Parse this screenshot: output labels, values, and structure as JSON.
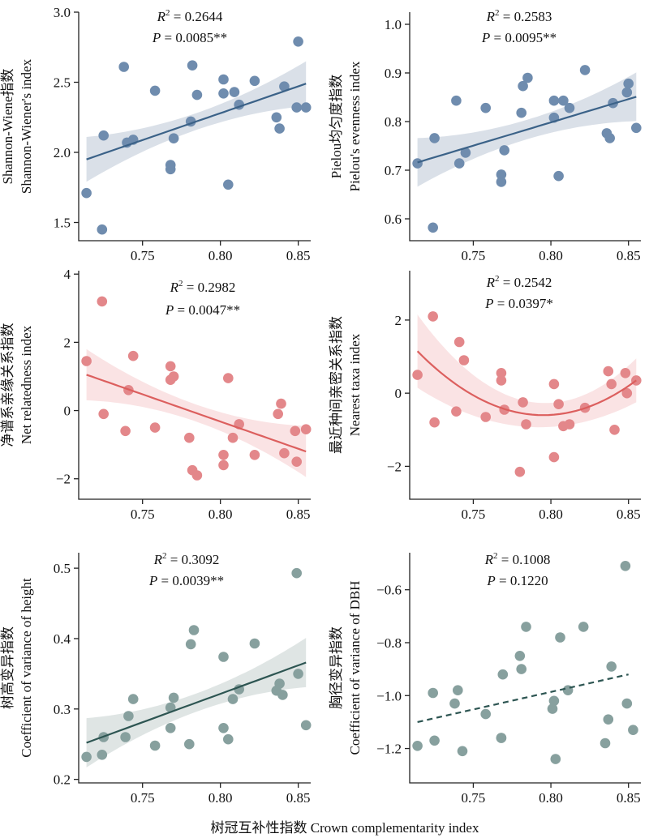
{
  "figure": {
    "xlabel": "树冠互补性指数 Crown complementarity index"
  },
  "chart_data": [
    {
      "type": "scatter",
      "ylabel": [
        "Shannon-Wiene指数",
        "Shannon-Wiener's index"
      ],
      "stats": {
        "r2_value": "0.2644",
        "p": "P = 0.0085**"
      },
      "xlim": [
        0.709,
        0.858
      ],
      "ylim": [
        1.37,
        3.0
      ],
      "xticks": [
        0.75,
        0.8,
        0.85
      ],
      "yticks": [
        1.5,
        2.0,
        2.5,
        3.0
      ],
      "ytick_labels": [
        "1.5",
        "2.0",
        "2.5",
        "3.0"
      ],
      "points": [
        [
          0.714,
          1.71
        ],
        [
          0.724,
          1.45
        ],
        [
          0.725,
          2.12
        ],
        [
          0.738,
          2.61
        ],
        [
          0.74,
          2.07
        ],
        [
          0.744,
          2.09
        ],
        [
          0.758,
          2.44
        ],
        [
          0.768,
          1.91
        ],
        [
          0.768,
          1.88
        ],
        [
          0.77,
          2.1
        ],
        [
          0.781,
          2.22
        ],
        [
          0.782,
          2.62
        ],
        [
          0.785,
          2.41
        ],
        [
          0.802,
          2.52
        ],
        [
          0.802,
          2.42
        ],
        [
          0.805,
          1.77
        ],
        [
          0.809,
          2.43
        ],
        [
          0.812,
          2.34
        ],
        [
          0.822,
          2.51
        ],
        [
          0.836,
          2.25
        ],
        [
          0.838,
          2.17
        ],
        [
          0.841,
          2.47
        ],
        [
          0.849,
          2.32
        ],
        [
          0.85,
          2.79
        ],
        [
          0.855,
          2.32
        ]
      ],
      "fit": {
        "x0": 0.714,
        "x1": 0.855,
        "kind": "linear",
        "y0": 1.95,
        "y1": 2.49,
        "ci_half0": 0.16,
        "ci_mid": 0.06,
        "ci_half1": 0.16
      },
      "color": "#6f8cae",
      "line_color": "#3b6288",
      "band_color": "#cdd6e0",
      "line_style": "solid"
    },
    {
      "type": "scatter",
      "ylabel": [
        "Pielou均匀度指数",
        "Pielou's evenness index"
      ],
      "stats": {
        "r2_value": "0.2583",
        "p": "P = 0.0095**"
      },
      "xlim": [
        0.709,
        0.858
      ],
      "ylim": [
        0.555,
        1.025
      ],
      "xticks": [
        0.75,
        0.8,
        0.85
      ],
      "yticks": [
        0.6,
        0.7,
        0.8,
        0.9,
        1.0
      ],
      "ytick_labels": [
        "0.6",
        "0.7",
        "0.8",
        "0.9",
        "1.0"
      ],
      "points": [
        [
          0.714,
          0.714
        ],
        [
          0.724,
          0.582
        ],
        [
          0.725,
          0.766
        ],
        [
          0.739,
          0.843
        ],
        [
          0.741,
          0.714
        ],
        [
          0.745,
          0.736
        ],
        [
          0.758,
          0.828
        ],
        [
          0.768,
          0.691
        ],
        [
          0.768,
          0.676
        ],
        [
          0.77,
          0.741
        ],
        [
          0.781,
          0.818
        ],
        [
          0.782,
          0.873
        ],
        [
          0.785,
          0.89
        ],
        [
          0.802,
          0.808
        ],
        [
          0.802,
          0.843
        ],
        [
          0.805,
          0.688
        ],
        [
          0.808,
          0.843
        ],
        [
          0.812,
          0.828
        ],
        [
          0.822,
          0.906
        ],
        [
          0.836,
          0.776
        ],
        [
          0.838,
          0.766
        ],
        [
          0.84,
          0.838
        ],
        [
          0.849,
          0.86
        ],
        [
          0.85,
          0.878
        ],
        [
          0.855,
          0.787
        ]
      ],
      "fit": {
        "x0": 0.714,
        "x1": 0.855,
        "kind": "linear",
        "y0": 0.716,
        "y1": 0.851,
        "ci_half0": 0.05,
        "ci_mid": 0.02,
        "ci_half1": 0.05
      },
      "color": "#6f8cae",
      "line_color": "#3b6288",
      "band_color": "#cdd6e0",
      "line_style": "solid"
    },
    {
      "type": "scatter",
      "ylabel": [
        "净谱系亲缘关系指数",
        "Net relatedness index"
      ],
      "stats": {
        "r2_value": "0.2982",
        "p": "P = 0.0047**"
      },
      "xlim": [
        0.709,
        0.858
      ],
      "ylim": [
        -2.6,
        4.1
      ],
      "xticks": [
        0.75,
        0.8,
        0.85
      ],
      "yticks": [
        -2,
        0,
        2,
        4
      ],
      "ytick_labels": [
        "−2",
        "0",
        "2",
        "4"
      ],
      "points": [
        [
          0.714,
          1.45
        ],
        [
          0.724,
          3.2
        ],
        [
          0.725,
          -0.1
        ],
        [
          0.739,
          -0.6
        ],
        [
          0.741,
          0.6
        ],
        [
          0.744,
          1.6
        ],
        [
          0.758,
          -0.5
        ],
        [
          0.768,
          1.3
        ],
        [
          0.768,
          0.9
        ],
        [
          0.77,
          1.0
        ],
        [
          0.78,
          -0.8
        ],
        [
          0.782,
          -1.75
        ],
        [
          0.785,
          -1.9
        ],
        [
          0.802,
          -1.3
        ],
        [
          0.802,
          -1.6
        ],
        [
          0.805,
          0.95
        ],
        [
          0.808,
          -0.8
        ],
        [
          0.812,
          -0.4
        ],
        [
          0.822,
          -1.3
        ],
        [
          0.837,
          -0.1
        ],
        [
          0.839,
          0.2
        ],
        [
          0.841,
          -1.25
        ],
        [
          0.848,
          -0.6
        ],
        [
          0.849,
          -1.5
        ],
        [
          0.855,
          -0.55
        ]
      ],
      "fit": {
        "x0": 0.714,
        "x1": 0.855,
        "kind": "linear",
        "y0": 1.05,
        "y1": -1.2,
        "ci_half0": 0.75,
        "ci_mid": 0.25,
        "ci_half1": 0.75
      },
      "color": "#e3878a",
      "line_color": "#dc5f5e",
      "band_color": "#f8dadb",
      "line_style": "solid"
    },
    {
      "type": "scatter",
      "ylabel": [
        "最近种间亲密关系指数",
        "Nearest taxa index"
      ],
      "stats": {
        "r2_value": "0.2542",
        "p": "P = 0.0397*"
      },
      "xlim": [
        0.709,
        0.858
      ],
      "ylim": [
        -2.9,
        3.35
      ],
      "xticks": [
        0.75,
        0.8,
        0.85
      ],
      "yticks": [
        -2,
        0,
        2
      ],
      "ytick_labels": [
        "−2",
        "0",
        "2"
      ],
      "points": [
        [
          0.714,
          0.5
        ],
        [
          0.724,
          2.1
        ],
        [
          0.725,
          -0.8
        ],
        [
          0.739,
          -0.5
        ],
        [
          0.741,
          1.4
        ],
        [
          0.744,
          0.9
        ],
        [
          0.758,
          -0.65
        ],
        [
          0.768,
          0.55
        ],
        [
          0.768,
          0.35
        ],
        [
          0.77,
          -0.45
        ],
        [
          0.78,
          -2.15
        ],
        [
          0.782,
          -0.25
        ],
        [
          0.784,
          -0.85
        ],
        [
          0.802,
          -1.75
        ],
        [
          0.802,
          0.25
        ],
        [
          0.805,
          -0.3
        ],
        [
          0.808,
          -0.9
        ],
        [
          0.812,
          -0.85
        ],
        [
          0.822,
          -0.4
        ],
        [
          0.837,
          0.6
        ],
        [
          0.839,
          0.25
        ],
        [
          0.841,
          -1.0
        ],
        [
          0.848,
          0.55
        ],
        [
          0.849,
          0.0
        ],
        [
          0.855,
          0.35
        ]
      ],
      "fit": {
        "x0": 0.714,
        "x1": 0.855,
        "kind": "quadratic",
        "ctrl": [
          [
            0.714,
            1.15
          ],
          [
            0.795,
            -0.6
          ],
          [
            0.855,
            0.35
          ]
        ],
        "ci_half0": 1.0,
        "ci_mid": 0.35,
        "ci_half1": 0.6
      },
      "color": "#e3878a",
      "line_color": "#dc5f5e",
      "band_color": "#f8dadb",
      "line_style": "solid"
    },
    {
      "type": "scatter",
      "ylabel": [
        "树高变异指数",
        "Coefficient of variance of  height"
      ],
      "stats": {
        "r2_value": "0.3092",
        "p": "P = 0.0039**"
      },
      "xlim": [
        0.709,
        0.858
      ],
      "ylim": [
        0.195,
        0.522
      ],
      "xticks": [
        0.75,
        0.8,
        0.85
      ],
      "yticks": [
        0.2,
        0.3,
        0.4,
        0.5
      ],
      "ytick_labels": [
        "0.2",
        "0.3",
        "0.4",
        "0.5"
      ],
      "points": [
        [
          0.714,
          0.232
        ],
        [
          0.724,
          0.235
        ],
        [
          0.725,
          0.26
        ],
        [
          0.739,
          0.26
        ],
        [
          0.741,
          0.29
        ],
        [
          0.744,
          0.314
        ],
        [
          0.758,
          0.248
        ],
        [
          0.768,
          0.302
        ],
        [
          0.768,
          0.273
        ],
        [
          0.77,
          0.316
        ],
        [
          0.78,
          0.25
        ],
        [
          0.781,
          0.392
        ],
        [
          0.783,
          0.412
        ],
        [
          0.802,
          0.374
        ],
        [
          0.802,
          0.273
        ],
        [
          0.805,
          0.257
        ],
        [
          0.808,
          0.314
        ],
        [
          0.812,
          0.328
        ],
        [
          0.822,
          0.393
        ],
        [
          0.836,
          0.326
        ],
        [
          0.838,
          0.336
        ],
        [
          0.84,
          0.32
        ],
        [
          0.849,
          0.493
        ],
        [
          0.85,
          0.35
        ],
        [
          0.855,
          0.277
        ]
      ],
      "fit": {
        "x0": 0.714,
        "x1": 0.855,
        "kind": "linear",
        "y0": 0.252,
        "y1": 0.366,
        "ci_half0": 0.035,
        "ci_mid": 0.013,
        "ci_half1": 0.035
      },
      "color": "#87a09e",
      "line_color": "#2d5552",
      "band_color": "#d4dcdb",
      "line_style": "solid"
    },
    {
      "type": "scatter",
      "ylabel": [
        "胸径变异指数",
        "Coefficient of variance of DBH"
      ],
      "stats": {
        "r2_value": "0.1008",
        "p": "P = 0.1220"
      },
      "xlim": [
        0.709,
        0.858
      ],
      "ylim": [
        -1.33,
        -0.46
      ],
      "xticks": [
        0.75,
        0.8,
        0.85
      ],
      "yticks": [
        -1.2,
        -1.0,
        -0.8,
        -0.6
      ],
      "ytick_labels": [
        "−1.2",
        "−1.0",
        "−0.8",
        "−0.6"
      ],
      "points": [
        [
          0.714,
          -1.19
        ],
        [
          0.724,
          -0.99
        ],
        [
          0.725,
          -1.17
        ],
        [
          0.738,
          -1.03
        ],
        [
          0.74,
          -0.98
        ],
        [
          0.743,
          -1.21
        ],
        [
          0.758,
          -1.07
        ],
        [
          0.768,
          -1.16
        ],
        [
          0.768,
          -1.16
        ],
        [
          0.769,
          -0.92
        ],
        [
          0.78,
          -0.85
        ],
        [
          0.781,
          -0.9
        ],
        [
          0.784,
          -0.74
        ],
        [
          0.801,
          -1.05
        ],
        [
          0.802,
          -1.02
        ],
        [
          0.803,
          -1.24
        ],
        [
          0.806,
          -0.78
        ],
        [
          0.811,
          -0.98
        ],
        [
          0.821,
          -0.74
        ],
        [
          0.835,
          -1.18
        ],
        [
          0.837,
          -1.09
        ],
        [
          0.839,
          -0.89
        ],
        [
          0.848,
          -0.51
        ],
        [
          0.849,
          -1.03
        ],
        [
          0.853,
          -1.13
        ]
      ],
      "fit": {
        "x0": 0.714,
        "x1": 0.85,
        "kind": "linear",
        "y0": -1.1,
        "y1": -0.92
      },
      "color": "#87a09e",
      "line_color": "#2d5552",
      "band_color": "none",
      "line_style": "dashed"
    }
  ]
}
